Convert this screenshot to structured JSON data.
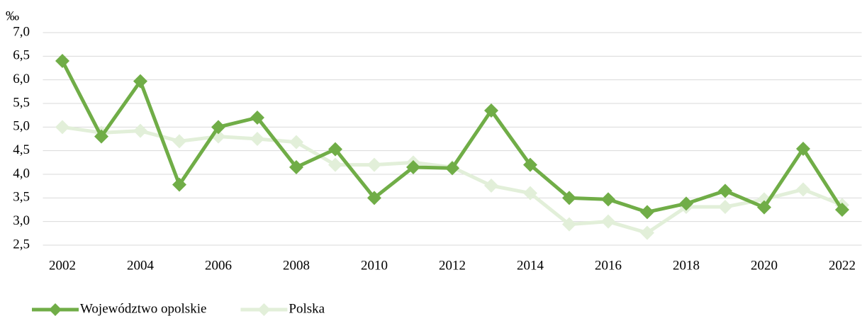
{
  "chart_data": {
    "type": "line",
    "y_unit": "‰",
    "x": [
      2002,
      2003,
      2004,
      2005,
      2006,
      2007,
      2008,
      2009,
      2010,
      2011,
      2012,
      2013,
      2014,
      2015,
      2016,
      2017,
      2018,
      2019,
      2020,
      2021,
      2022
    ],
    "xlim": [
      2001.5,
      2022.5
    ],
    "xticks": [
      2002,
      2004,
      2006,
      2008,
      2010,
      2012,
      2014,
      2016,
      2018,
      2020,
      2022
    ],
    "ylim": [
      2.5,
      7.0
    ],
    "yticks": [
      {
        "value": 2.5,
        "label": "2,5"
      },
      {
        "value": 3.0,
        "label": "3,0"
      },
      {
        "value": 3.5,
        "label": "3,5"
      },
      {
        "value": 4.0,
        "label": "4,0"
      },
      {
        "value": 4.5,
        "label": "4,5"
      },
      {
        "value": 5.0,
        "label": "5,0"
      },
      {
        "value": 5.5,
        "label": "5,5"
      },
      {
        "value": 6.0,
        "label": "6,0"
      },
      {
        "value": 6.5,
        "label": "6,5"
      },
      {
        "value": 7.0,
        "label": "7,0"
      }
    ],
    "grid": true,
    "legend": "bottom-left",
    "series": [
      {
        "name": "Województwo opolskie",
        "color": "#70ad47",
        "values": [
          6.4,
          4.8,
          5.97,
          3.78,
          5.0,
          5.2,
          4.15,
          4.53,
          3.5,
          4.15,
          4.13,
          5.35,
          4.2,
          3.5,
          3.47,
          3.2,
          3.38,
          3.65,
          3.3,
          4.54,
          3.25
        ]
      },
      {
        "name": "Polska",
        "color": "#e2efd9",
        "values": [
          5.0,
          4.88,
          4.92,
          4.7,
          4.8,
          4.75,
          4.68,
          4.2,
          4.2,
          4.25,
          4.15,
          3.76,
          3.6,
          2.94,
          3.0,
          2.76,
          3.31,
          3.31,
          3.47,
          3.68,
          3.35
        ]
      }
    ]
  }
}
